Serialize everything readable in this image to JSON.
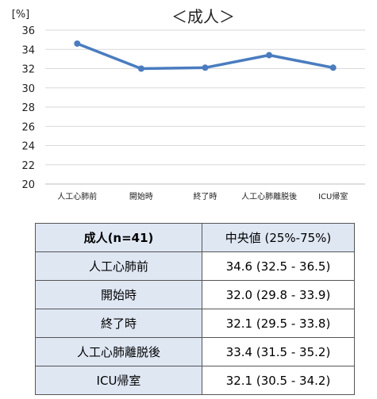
{
  "chart_data": {
    "type": "line",
    "title": "＜成人＞",
    "ylabel": "[%]",
    "xlabel": "",
    "categories": [
      "人工心肺前",
      "開始時",
      "終了時",
      "人工心肺離脱後",
      "ICU帰室"
    ],
    "series": [
      {
        "values": [
          34.6,
          32.0,
          32.1,
          33.4,
          32.1
        ]
      }
    ],
    "ylim": [
      20,
      36
    ],
    "yticks": [
      20,
      22,
      24,
      26,
      28,
      30,
      32,
      34,
      36
    ],
    "grid": true,
    "legend": "none",
    "line_color": "#4a7cbf"
  },
  "table": {
    "header": [
      "成人(n=41)",
      "中央値 (25%-75%)"
    ],
    "rows": [
      [
        "人工心肺前",
        "34.6 (32.5 - 36.5)"
      ],
      [
        "開始時",
        "32.0 (29.8 - 33.9)"
      ],
      [
        "終了時",
        "32.1 (29.5 - 33.8)"
      ],
      [
        "人工心肺離脱後",
        "33.4 (31.5 - 35.2)"
      ],
      [
        "ICU帰室",
        "32.1 (30.5 - 34.2)"
      ]
    ]
  }
}
